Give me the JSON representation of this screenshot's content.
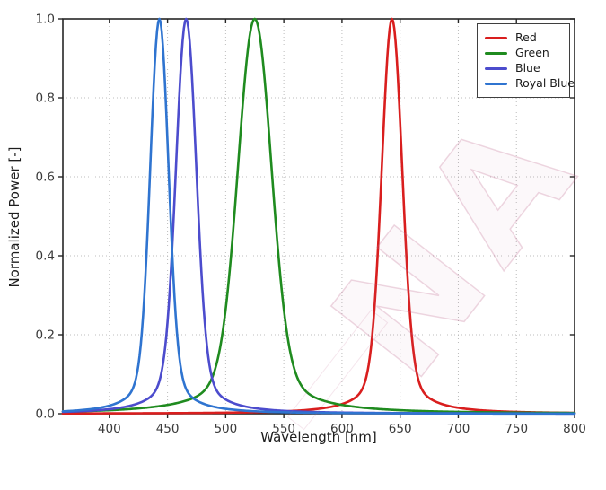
{
  "figure": {
    "background": "#ffffff"
  },
  "watermark": {
    "text": "NA",
    "color": "#c06890"
  },
  "axes": {
    "spine_color": "#262626",
    "tick_label_color": "#3a3a3a",
    "grid_color": "#bcbcbc"
  },
  "chart_data": {
    "type": "line",
    "title": "",
    "xlabel": "Wavelength [nm]",
    "ylabel": "Normalized Power [-]",
    "xlim": [
      360,
      800
    ],
    "ylim": [
      0.0,
      1.0
    ],
    "x_ticks": [
      "400",
      "450",
      "500",
      "550",
      "600",
      "650",
      "700",
      "750",
      "800"
    ],
    "y_ticks": [
      "0.0",
      "0.2",
      "0.4",
      "0.6",
      "0.8",
      "1.0"
    ],
    "grid": "dotted",
    "legend_position": "upper right",
    "curve_model": {
      "shape": "pseudo-voigt",
      "lorentz_fraction": 0.15,
      "lorentz_width_scale": 1.9
    },
    "series": [
      {
        "name": "Red",
        "color": "#d91e1e",
        "peak_nm": 643,
        "fwhm_nm": 20,
        "peak_value": 1.0
      },
      {
        "name": "Green",
        "color": "#1f8b1f",
        "peak_nm": 525,
        "fwhm_nm": 33,
        "peak_value": 1.0
      },
      {
        "name": "Blue",
        "color": "#4c4ccd",
        "peak_nm": 466,
        "fwhm_nm": 20,
        "peak_value": 1.0
      },
      {
        "name": "Royal Blue",
        "color": "#2f74d0",
        "peak_nm": 443,
        "fwhm_nm": 18,
        "peak_value": 1.0
      }
    ]
  }
}
